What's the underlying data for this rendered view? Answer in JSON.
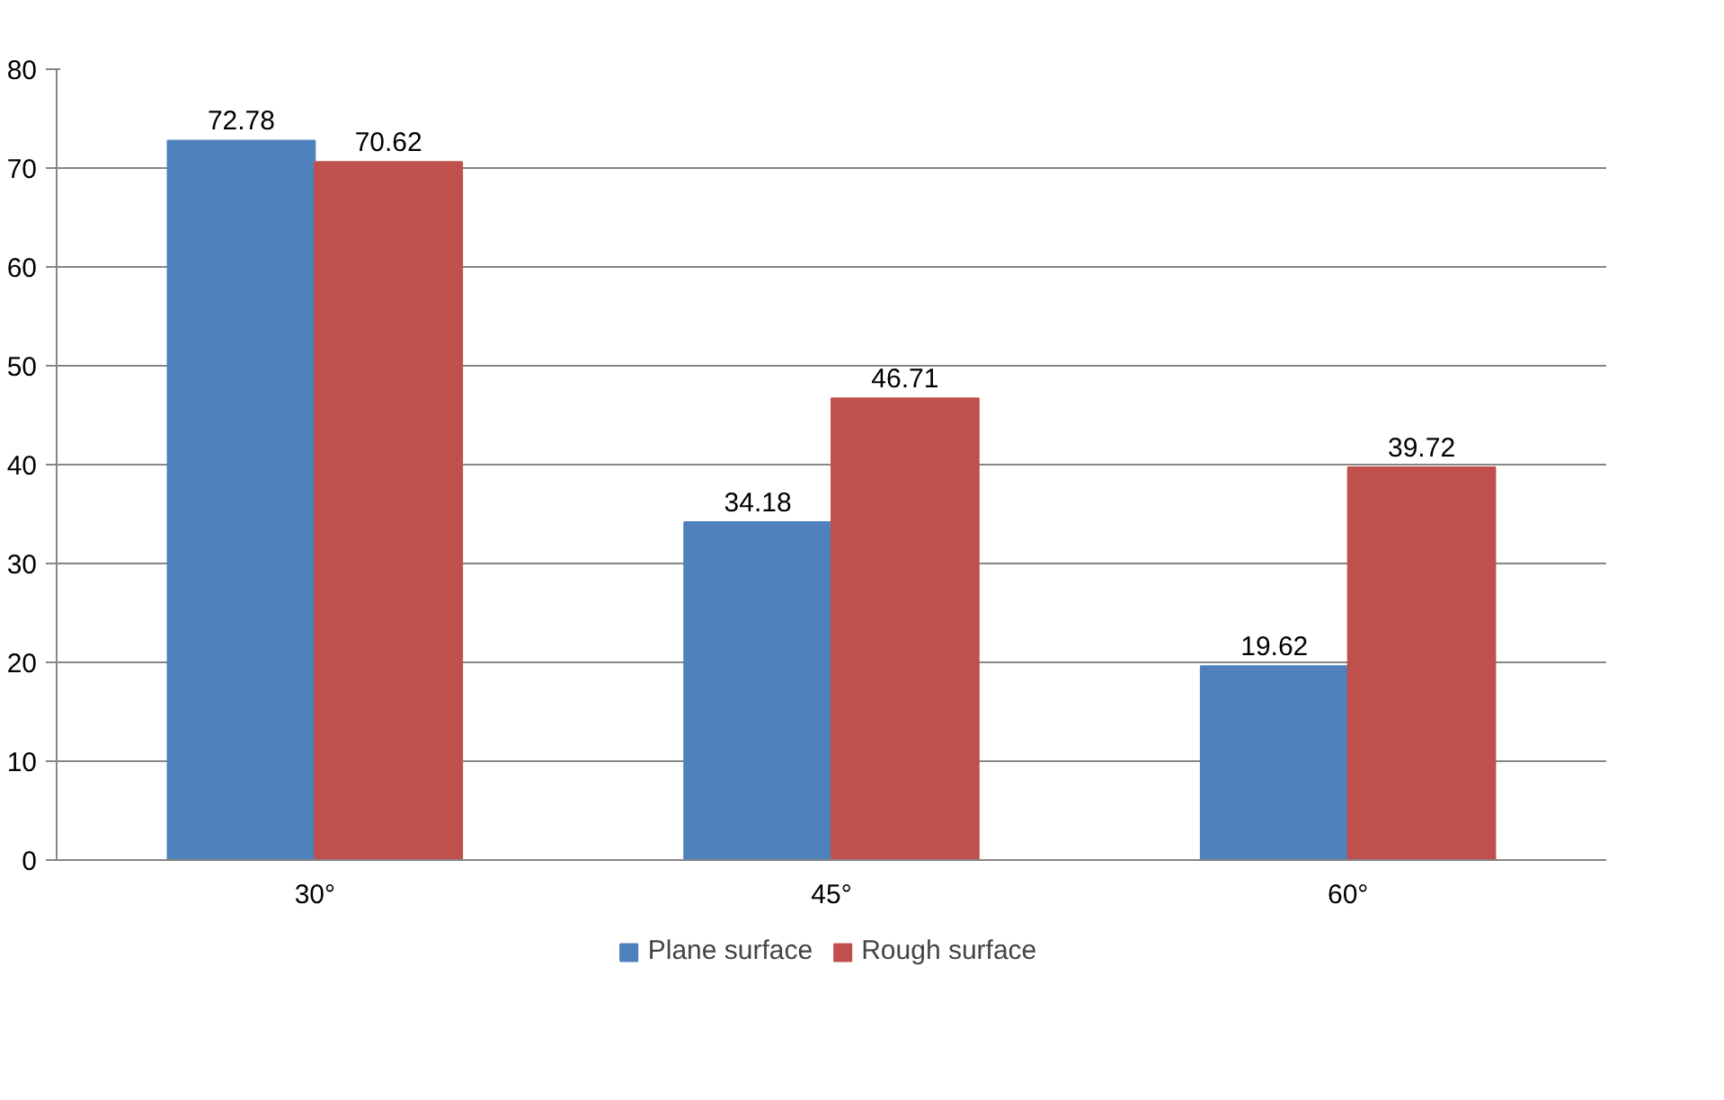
{
  "chart_data": {
    "type": "bar",
    "categories": [
      "30°",
      "45°",
      "60°"
    ],
    "series": [
      {
        "name": "Plane surface",
        "color": "#4f81bd",
        "values": [
          72.78,
          34.18,
          19.62
        ]
      },
      {
        "name": "Rough surface",
        "color": "#c0504d",
        "values": [
          70.62,
          46.71,
          39.72
        ]
      }
    ],
    "ylim": [
      0,
      80
    ],
    "yticks": [
      0,
      10,
      20,
      30,
      40,
      50,
      60,
      70,
      80
    ],
    "grid": "y",
    "legend": "bottom",
    "data_labels": true
  }
}
